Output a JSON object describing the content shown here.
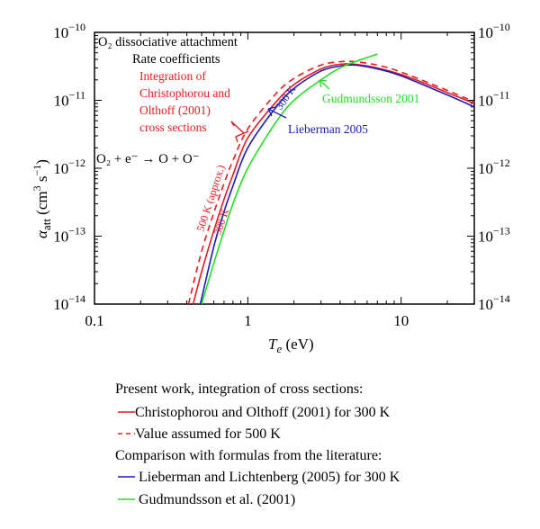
{
  "chart_data": {
    "type": "line",
    "xlabel": {
      "main": "T",
      "sub": "e",
      "unit": " (eV)"
    },
    "ylabel": {
      "main": "α",
      "sub": "att",
      "unit_pre": " (cm",
      "unit_sup1": "3",
      "unit_mid": " s",
      "unit_sup2": "−1",
      "unit_post": ")"
    },
    "x_scale": "log",
    "y_scale": "log",
    "xlim": [
      0.1,
      30
    ],
    "ylim": [
      1e-14,
      1e-10
    ],
    "x_ticks": [
      {
        "value": 0.1,
        "label": "0.1"
      },
      {
        "value": 1,
        "label": "1"
      },
      {
        "value": 10,
        "label": "10"
      }
    ],
    "y_ticks": [
      {
        "value": 1e-10,
        "base": "10",
        "exp": "−10"
      },
      {
        "value": 1e-11,
        "base": "10",
        "exp": "−11"
      },
      {
        "value": 1e-12,
        "base": "10",
        "exp": "−12"
      },
      {
        "value": 1e-13,
        "base": "10",
        "exp": "−13"
      },
      {
        "value": 1e-14,
        "base": "10",
        "exp": "−14"
      }
    ],
    "grid": false,
    "series": [
      {
        "name": "Christophorou and Olthoff (2001) for 300 K",
        "color": "#e8191f",
        "dash": false,
        "x": [
          0.44,
          0.5,
          0.6,
          0.7,
          0.8,
          1,
          1.5,
          2,
          3,
          4,
          5,
          7,
          10,
          15,
          20,
          30
        ],
        "y": [
          1e-14,
          3e-14,
          1.2e-13,
          3.5e-13,
          8e-13,
          2.8e-12,
          9e-12,
          1.7e-11,
          2.9e-11,
          3.4e-11,
          3.4e-11,
          3e-11,
          2.4e-11,
          1.7e-11,
          1.3e-11,
          9e-12
        ]
      },
      {
        "name": "Value assumed for 500 K",
        "color": "#e8191f",
        "dash": true,
        "x": [
          0.41,
          0.5,
          0.6,
          0.7,
          0.8,
          1,
          1.5,
          2,
          3,
          4,
          5,
          7,
          10,
          20,
          30
        ],
        "y": [
          1e-14,
          6e-14,
          2.2e-13,
          6e-13,
          1.3e-12,
          3.8e-12,
          1.2e-11,
          2.1e-11,
          3.3e-11,
          3.7e-11,
          3.7e-11,
          3.3e-11,
          2.6e-11,
          1.4e-11,
          9.5e-12
        ]
      },
      {
        "name": "Lieberman and Lichtenberg (2005) for 300 K",
        "color": "#1a1ab8",
        "dash": false,
        "x": [
          0.49,
          0.6,
          0.7,
          0.8,
          1,
          1.5,
          2,
          3,
          4,
          5,
          7,
          10,
          20,
          30
        ],
        "y": [
          1e-14,
          7e-14,
          2.3e-13,
          5.5e-13,
          2e-12,
          7.5e-12,
          1.5e-11,
          2.7e-11,
          3.2e-11,
          3.3e-11,
          2.9e-11,
          2.3e-11,
          1.2e-11,
          8e-12
        ]
      },
      {
        "name": "Gudmundsson et al. (2001)",
        "color": "#22dd22",
        "dash": false,
        "x": [
          0.5,
          0.6,
          0.7,
          0.8,
          1,
          1.5,
          2,
          3,
          4,
          5,
          7
        ],
        "y": [
          1e-14,
          4e-14,
          1.2e-13,
          3e-13,
          1e-12,
          4.5e-12,
          1e-11,
          2e-11,
          3e-11,
          3.7e-11,
          4.8e-11
        ]
      }
    ],
    "annotations": {
      "title1": "O₂ dissociative attachment",
      "title2": "Rate coefficients",
      "integration": [
        "Integration of",
        "Christophorou and",
        "Olthoff (2001)",
        "cross sections"
      ],
      "reaction": "O₂ + e⁻ → O + O⁻",
      "gudmundsson": "Gudmundsson 2001",
      "lieberman": "Lieberman 2005",
      "blue_300k": "300 K",
      "red_500k": "500 K (approx.)",
      "red_300k": "300 K"
    },
    "legend": {
      "placement": "bottom",
      "heading1": "Present work, integration of cross sections:",
      "heading2": "Comparison with formulas from the literature:",
      "entries": [
        "Christophorou and Olthoff (2001) for 300 K",
        "Value assumed for 500 K",
        " Lieberman and Lichtenberg (2005) for 300 K",
        " Gudmundsson et al. (2001)"
      ]
    }
  }
}
